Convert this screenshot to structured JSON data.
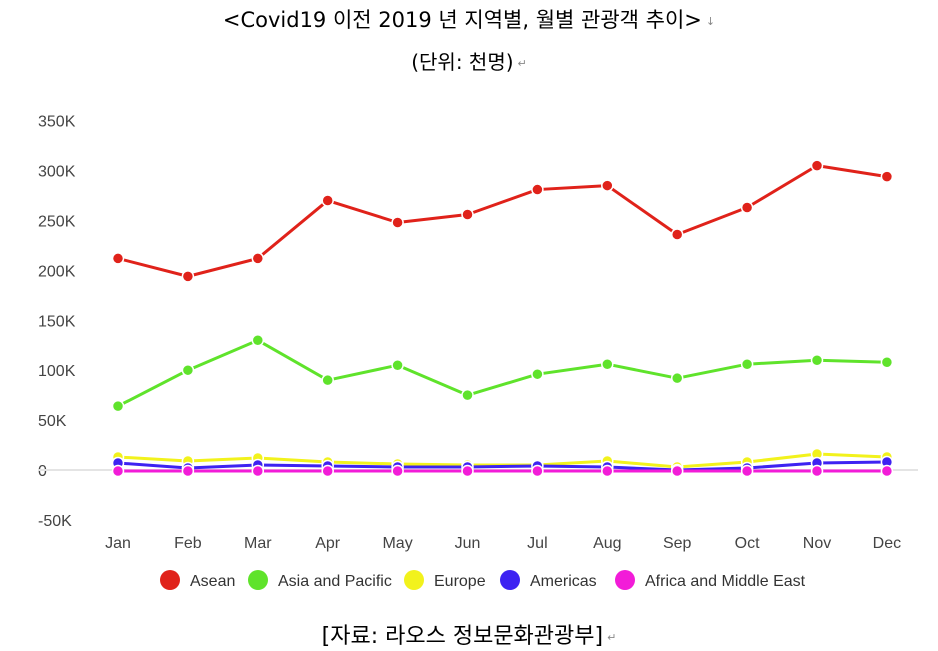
{
  "header": {
    "title": "<Covid19 이전 2019 년 지역별, 월별 관광객 추이>",
    "subtitle": "(단위: 천명)"
  },
  "footer": {
    "source": "[자료: 라오스 정보문화관광부]"
  },
  "chart_data": {
    "type": "line",
    "title": "<Covid19 이전 2019 년 지역별, 월별 관광객 추이>",
    "subtitle": "(단위: 천명)",
    "categories": [
      "Jan",
      "Feb",
      "Mar",
      "Apr",
      "May",
      "Jun",
      "Jul",
      "Aug",
      "Sep",
      "Oct",
      "Nov",
      "Dec"
    ],
    "y_ticks": [
      "350K",
      "300K",
      "250K",
      "200K",
      "150K",
      "100K",
      "50K",
      "0",
      "-50K"
    ],
    "ylim": [
      -50,
      350
    ],
    "grid": false,
    "legend_position": "bottom",
    "series": [
      {
        "name": "Asean",
        "color": "#e0221a",
        "values": [
          212,
          194,
          212,
          270,
          248,
          256,
          281,
          285,
          236,
          263,
          305,
          294
        ]
      },
      {
        "name": "Asia and Pacific",
        "color": "#5fe32b",
        "values": [
          64,
          100,
          130,
          90,
          105,
          75,
          96,
          106,
          92,
          106,
          110,
          108
        ]
      },
      {
        "name": "Europe",
        "color": "#f2f21c",
        "values": [
          13,
          9,
          12,
          8,
          6,
          5,
          5,
          9,
          3,
          8,
          16,
          13
        ]
      },
      {
        "name": "Americas",
        "color": "#3d22f2",
        "values": [
          7,
          2,
          5,
          4,
          3,
          3,
          4,
          3,
          0,
          2,
          7,
          8
        ]
      },
      {
        "name": "Africa and Middle East",
        "color": "#f21cd8",
        "values": [
          -1,
          -1,
          -1,
          -1,
          -1,
          -1,
          -1,
          -1,
          -1,
          -1,
          -1,
          -1
        ]
      }
    ]
  }
}
